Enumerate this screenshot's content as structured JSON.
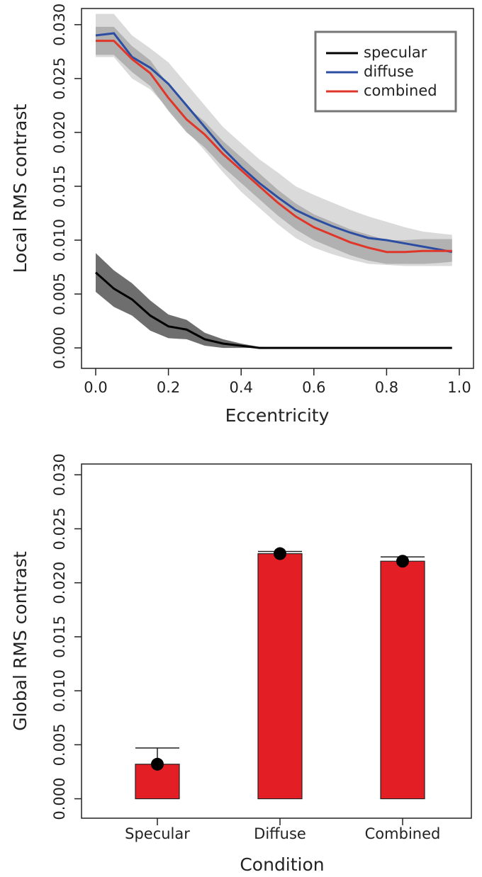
{
  "chart_data": [
    {
      "type": "line",
      "x_label": "Eccentricity",
      "y_label": "Local RMS contrast",
      "x": [
        0,
        0.05,
        0.1,
        0.15,
        0.2,
        0.25,
        0.3,
        0.35,
        0.4,
        0.45,
        0.5,
        0.55,
        0.6,
        0.65,
        0.7,
        0.75,
        0.8,
        0.85,
        0.9,
        0.95,
        0.98
      ],
      "series": [
        {
          "name": "specular",
          "color": "#000000",
          "band_color": "#555555",
          "values": [
            0.007,
            0.0055,
            0.0045,
            0.003,
            0.002,
            0.0017,
            0.0008,
            0.0004,
            0.0002,
            0,
            0,
            0,
            0,
            0,
            0,
            0,
            0,
            0,
            0,
            0,
            0
          ],
          "lower": [
            0.0052,
            0.0038,
            0.003,
            0.0016,
            0.0009,
            0.0008,
            0.0002,
            0,
            0,
            0,
            0,
            0,
            0,
            0,
            0,
            0,
            0,
            0,
            0,
            0,
            0
          ],
          "upper": [
            0.0088,
            0.0072,
            0.006,
            0.0044,
            0.0031,
            0.0026,
            0.0014,
            0.0008,
            0.0004,
            0.0001,
            0,
            0,
            0,
            0,
            0,
            0,
            0,
            0,
            0,
            0,
            0
          ]
        },
        {
          "name": "diffuse",
          "color": "#2b4ea2",
          "band_color": "#d3d3d3",
          "values": [
            0.029,
            0.0292,
            0.027,
            0.026,
            0.0245,
            0.0225,
            0.0205,
            0.0185,
            0.0168,
            0.0153,
            0.014,
            0.0128,
            0.012,
            0.0113,
            0.0107,
            0.0102,
            0.01,
            0.0097,
            0.0094,
            0.0091,
            0.0089
          ],
          "lower": [
            0.027,
            0.027,
            0.025,
            0.024,
            0.0222,
            0.0202,
            0.0183,
            0.0163,
            0.0145,
            0.013,
            0.0115,
            0.0102,
            0.0093,
            0.0087,
            0.0082,
            0.0078,
            0.0077,
            0.0076,
            0.0076,
            0.0076,
            0.0076
          ],
          "upper": [
            0.031,
            0.031,
            0.029,
            0.0278,
            0.0265,
            0.0245,
            0.0225,
            0.0205,
            0.019,
            0.0175,
            0.0163,
            0.015,
            0.0142,
            0.0135,
            0.0128,
            0.0122,
            0.0117,
            0.0112,
            0.0108,
            0.0106,
            0.0105
          ]
        },
        {
          "name": "combined",
          "color": "#e0362a",
          "band_color": "#a9a9a9",
          "values": [
            0.0285,
            0.0285,
            0.0268,
            0.0255,
            0.0232,
            0.0212,
            0.0198,
            0.018,
            0.0165,
            0.015,
            0.0135,
            0.0122,
            0.0112,
            0.0105,
            0.0098,
            0.0093,
            0.0089,
            0.0089,
            0.009,
            0.009,
            0.009
          ],
          "lower": [
            0.0272,
            0.0272,
            0.0256,
            0.0243,
            0.022,
            0.02,
            0.0186,
            0.0168,
            0.0153,
            0.0138,
            0.0123,
            0.011,
            0.01,
            0.0093,
            0.0086,
            0.0081,
            0.0078,
            0.0078,
            0.0078,
            0.0079,
            0.008
          ],
          "upper": [
            0.0298,
            0.0298,
            0.028,
            0.0267,
            0.0244,
            0.0224,
            0.021,
            0.0192,
            0.0177,
            0.0162,
            0.0147,
            0.0134,
            0.0124,
            0.0117,
            0.011,
            0.0105,
            0.01,
            0.01,
            0.0101,
            0.0101,
            0.0101
          ]
        }
      ],
      "xlim": [
        -0.039,
        1.039
      ],
      "xticks": [
        {
          "value": 0,
          "label": "0.0"
        },
        {
          "value": 0.2,
          "label": "0.2"
        },
        {
          "value": 0.4,
          "label": "0.4"
        },
        {
          "value": 0.6,
          "label": "0.6"
        },
        {
          "value": 0.8,
          "label": "0.8"
        },
        {
          "value": 1,
          "label": "1.0"
        }
      ],
      "ylim": [
        -0.0019,
        0.0315
      ],
      "yticks": [
        {
          "value": 0,
          "label": "0.000"
        },
        {
          "value": 0.005,
          "label": "0.005"
        },
        {
          "value": 0.01,
          "label": "0.010"
        },
        {
          "value": 0.015,
          "label": "0.015"
        },
        {
          "value": 0.02,
          "label": "0.020"
        },
        {
          "value": 0.025,
          "label": "0.025"
        },
        {
          "value": 0.03,
          "label": "0.030"
        }
      ],
      "legend": "top-right"
    },
    {
      "type": "bar",
      "x_label": "Condition",
      "y_label": "Global RMS contrast",
      "categories": [
        "Specular",
        "Diffuse",
        "Combined"
      ],
      "values": [
        0.0032,
        0.0227,
        0.022
      ],
      "errors": [
        0.0015,
        0.0002,
        0.0004
      ],
      "color": "#e31e24",
      "ylim": [
        -0.0018,
        0.031
      ],
      "yticks": [
        {
          "value": 0,
          "label": "0.000"
        },
        {
          "value": 0.005,
          "label": "0.005"
        },
        {
          "value": 0.01,
          "label": "0.010"
        },
        {
          "value": 0.015,
          "label": "0.015"
        },
        {
          "value": 0.02,
          "label": "0.020"
        },
        {
          "value": 0.025,
          "label": "0.025"
        },
        {
          "value": 0.03,
          "label": "0.030"
        }
      ]
    }
  ]
}
